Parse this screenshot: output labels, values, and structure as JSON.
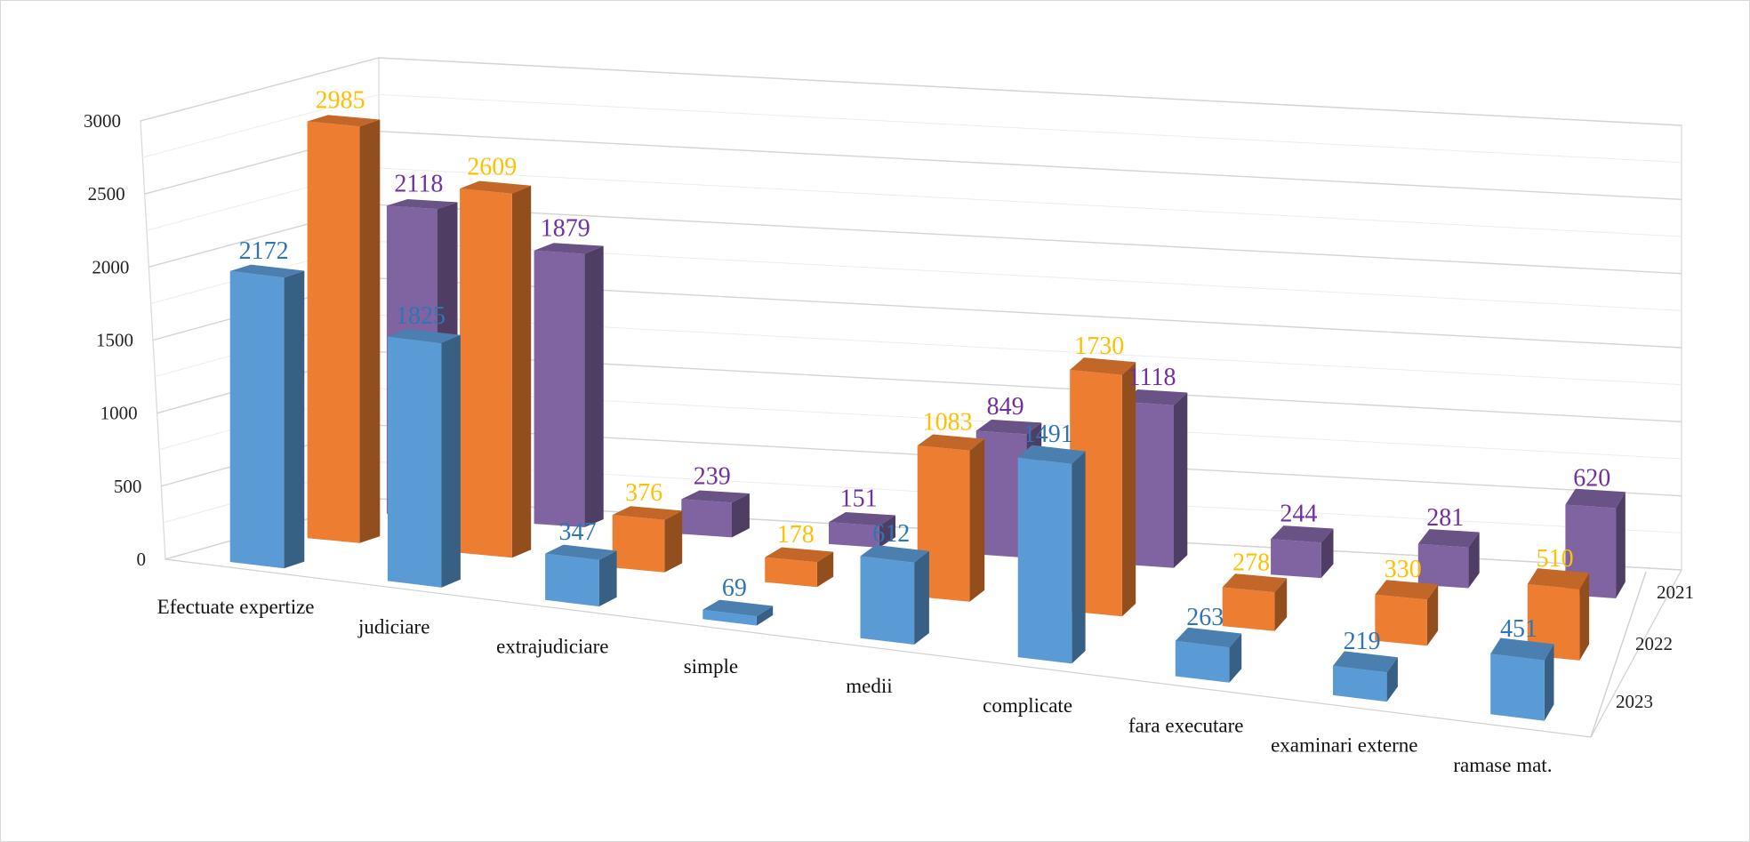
{
  "chart_data": {
    "type": "bar",
    "title": "",
    "xlabel": "",
    "ylabel": "",
    "categories": [
      "Efectuate expertize",
      "judiciare",
      "extrajudiciare",
      "simple",
      "medii",
      "complicate",
      "fara executare",
      "examinari externe",
      "ramase mat."
    ],
    "series": [
      {
        "name": "2023",
        "color": "#5b9bd5",
        "label_color": "#2e75b6",
        "values": [
          2172,
          1825,
          347,
          69,
          612,
          1491,
          263,
          219,
          451
        ]
      },
      {
        "name": "2022",
        "color": "#ed7d31",
        "label_color": "#ffc000",
        "values": [
          2985,
          2609,
          376,
          178,
          1083,
          1730,
          278,
          330,
          510
        ]
      },
      {
        "name": "2021",
        "color": "#8064a2",
        "label_color": "#7030a0",
        "values": [
          2118,
          1879,
          239,
          151,
          849,
          1118,
          244,
          281,
          620
        ]
      }
    ],
    "depth_labels": [
      "2021",
      "2022",
      "2023"
    ],
    "ylim": [
      0,
      3000
    ],
    "yticks": [
      0,
      500,
      1000,
      1500,
      2000,
      2500,
      3000
    ],
    "grid": true,
    "legend": "none"
  }
}
